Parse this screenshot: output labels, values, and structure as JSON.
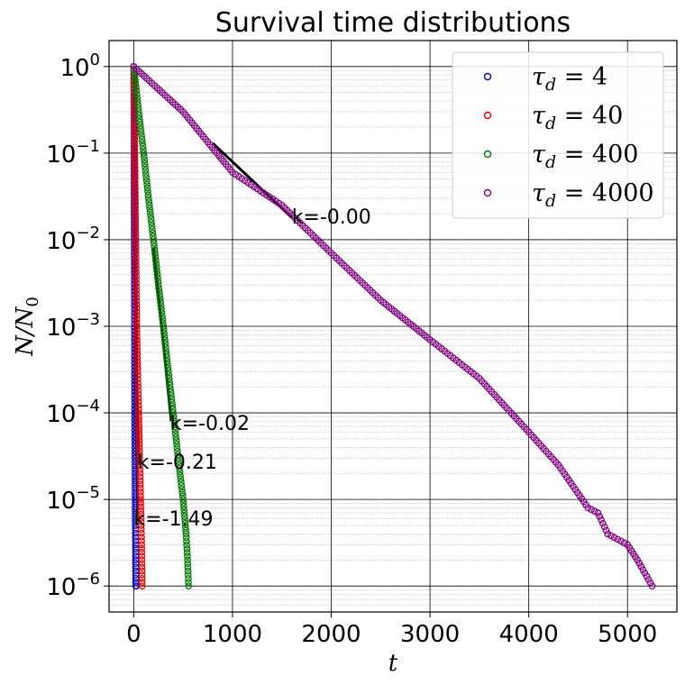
{
  "chart_data": {
    "type": "scatter",
    "title": "Survival time distributions",
    "xlabel": "t",
    "ylabel": "N/N₀",
    "xlim": [
      -250,
      5500
    ],
    "ylim_log10": [
      -6.3,
      0.3
    ],
    "yscale": "log",
    "grid": "major and minor",
    "legend_position": "top-right",
    "xticks": [
      0,
      1000,
      2000,
      3000,
      4000,
      5000
    ],
    "ytick_exponents": [
      0,
      -1,
      -2,
      -3,
      -4,
      -5,
      -6
    ],
    "series": [
      {
        "name": "τd = 4",
        "legend_sub": "d",
        "legend_rest": " = 4",
        "color": "#0000cc",
        "points": [
          [
            0,
            1.0
          ],
          [
            2,
            0.5
          ],
          [
            4,
            0.05
          ],
          [
            6,
            0.005
          ],
          [
            8,
            0.0008
          ],
          [
            10,
            0.0001
          ],
          [
            12,
            3e-05
          ],
          [
            14,
            1e-05
          ],
          [
            16,
            5e-06
          ],
          [
            18,
            3e-06
          ],
          [
            20,
            1e-06
          ],
          [
            25,
            1e-06
          ]
        ]
      },
      {
        "name": "τd = 40",
        "legend_sub": "d",
        "legend_rest": " = 40",
        "color": "#ee0000",
        "points": [
          [
            0,
            1.0
          ],
          [
            10,
            0.1
          ],
          [
            20,
            0.01
          ],
          [
            30,
            0.001
          ],
          [
            40,
            0.0003
          ],
          [
            50,
            0.0001
          ],
          [
            60,
            3e-05
          ],
          [
            70,
            1e-05
          ],
          [
            75,
            5e-06
          ],
          [
            80,
            3e-06
          ],
          [
            85,
            1e-06
          ]
        ]
      },
      {
        "name": "τd = 400",
        "legend_sub": "d",
        "legend_rest": " = 400",
        "color": "#007700",
        "points": [
          [
            0,
            1.0
          ],
          [
            50,
            0.3
          ],
          [
            100,
            0.1
          ],
          [
            150,
            0.03
          ],
          [
            200,
            0.01
          ],
          [
            250,
            0.003
          ],
          [
            300,
            0.001
          ],
          [
            350,
            0.0003
          ],
          [
            400,
            0.0001
          ],
          [
            450,
            3e-05
          ],
          [
            500,
            1e-05
          ],
          [
            530,
            4e-06
          ],
          [
            545,
            2e-06
          ],
          [
            555,
            1e-06
          ]
        ]
      },
      {
        "name": "τd = 4000",
        "legend_sub": "d",
        "legend_rest": " = 4000",
        "color": "#800080",
        "points": [
          [
            0,
            1.0
          ],
          [
            500,
            0.3
          ],
          [
            1000,
            0.06
          ],
          [
            1500,
            0.025
          ],
          [
            2000,
            0.007
          ],
          [
            2500,
            0.002
          ],
          [
            3000,
            0.0007
          ],
          [
            3500,
            0.00025
          ],
          [
            4000,
            6e-05
          ],
          [
            4300,
            2.5e-05
          ],
          [
            4600,
            8e-06
          ],
          [
            4700,
            7e-06
          ],
          [
            4800,
            4e-06
          ],
          [
            5000,
            3e-06
          ],
          [
            5100,
            2e-06
          ],
          [
            5250,
            1e-06
          ]
        ]
      }
    ],
    "fit_lines": [
      {
        "x": [
          0,
          40
        ],
        "y": [
          0.006,
          6e-06
        ]
      },
      {
        "x": [
          10,
          50
        ],
        "y": [
          0.003,
          2.5e-05
        ]
      },
      {
        "x": [
          200,
          380
        ],
        "y": [
          0.008,
          8e-05
        ]
      },
      {
        "x": [
          800,
          1600
        ],
        "y": [
          0.13,
          0.018
        ]
      }
    ],
    "annotations": [
      {
        "text": "k=-0.00",
        "x": 1600,
        "y": 0.017
      },
      {
        "text": "k=-0.02",
        "x": 370,
        "y": 7e-05
      },
      {
        "text": "k=-0.21",
        "x": 40,
        "y": 2.5e-05
      },
      {
        "text": "k=-1.49",
        "x": 0,
        "y": 5.5e-06
      }
    ]
  }
}
